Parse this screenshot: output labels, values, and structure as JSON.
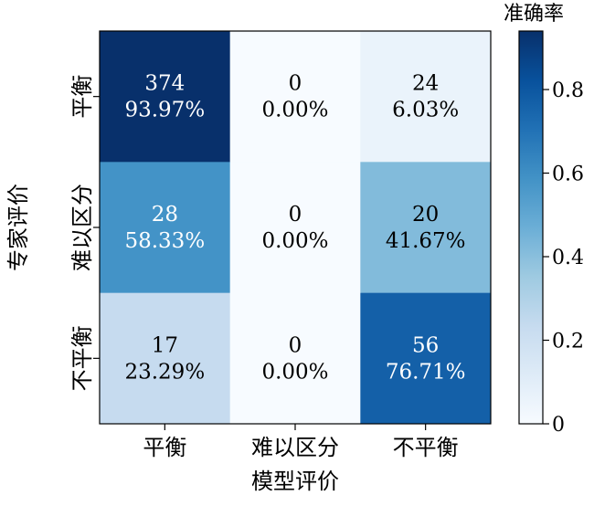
{
  "chart_data": {
    "type": "heatmap",
    "xlabel": "模型评价",
    "ylabel": "专家评价",
    "x_categories": [
      "平衡",
      "难以区分",
      "不平衡"
    ],
    "y_categories": [
      "平衡",
      "难以区分",
      "不平衡"
    ],
    "counts": [
      [
        374,
        0,
        24
      ],
      [
        28,
        0,
        20
      ],
      [
        17,
        0,
        56
      ]
    ],
    "accuracy": [
      [
        0.9397,
        0.0,
        0.0603
      ],
      [
        0.5833,
        0.0,
        0.4167
      ],
      [
        0.2329,
        0.0,
        0.7671
      ]
    ],
    "cell_labels": [
      [
        "93.97%",
        "0.00%",
        "6.03%"
      ],
      [
        "58.33%",
        "0.00%",
        "41.67%"
      ],
      [
        "23.29%",
        "0.00%",
        "76.71%"
      ]
    ],
    "colorbar": {
      "title": "准确率",
      "range": [
        0,
        0.94
      ],
      "ticks": [
        0,
        0.2,
        0.4,
        0.6,
        0.8
      ],
      "tick_labels": [
        "0",
        "0.2",
        "0.4",
        "0.6",
        "0.8"
      ],
      "colormap": "Blues"
    }
  }
}
